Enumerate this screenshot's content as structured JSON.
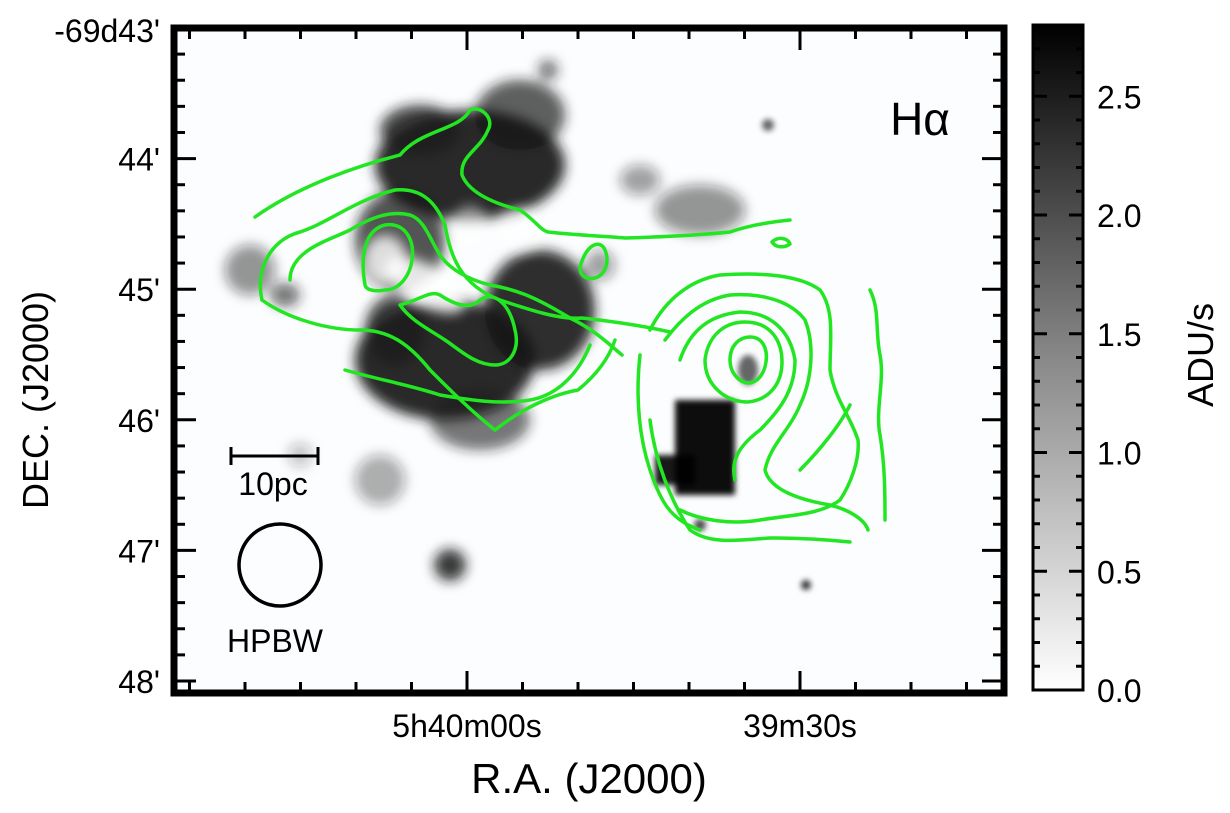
{
  "chart_data": {
    "type": "heatmap",
    "title": "",
    "band_label": "Hα",
    "xlabel": "R.A. (J2000)",
    "ylabel": "DEC. (J2000)",
    "x_tick_labels": [
      {
        "label": "5h40m00s",
        "ra_sec_offset": 0
      },
      {
        "label": "39m30s",
        "ra_sec_offset": -30
      }
    ],
    "y_tick_labels": [
      {
        "label": "-69d43'",
        "dec_arcmin": -43
      },
      {
        "label": "44'",
        "dec_arcmin": -44
      },
      {
        "label": "45'",
        "dec_arcmin": -45
      },
      {
        "label": "46'",
        "dec_arcmin": -46
      },
      {
        "label": "47'",
        "dec_arcmin": -47
      },
      {
        "label": "48'",
        "dec_arcmin": -48
      }
    ],
    "colorbar": {
      "label": "ADU/s",
      "range": [
        0.0,
        2.8
      ],
      "tick_labels": [
        "0.0",
        "0.5",
        "1.0",
        "1.5",
        "2.0",
        "2.5"
      ],
      "tick_values": [
        0.0,
        0.5,
        1.0,
        1.5,
        2.0,
        2.5
      ],
      "colormap": "inverted-grayscale"
    },
    "contour_color": "#22e622",
    "scale_bar_label": "10pc",
    "beam_label": "HPBW",
    "grid": false
  }
}
